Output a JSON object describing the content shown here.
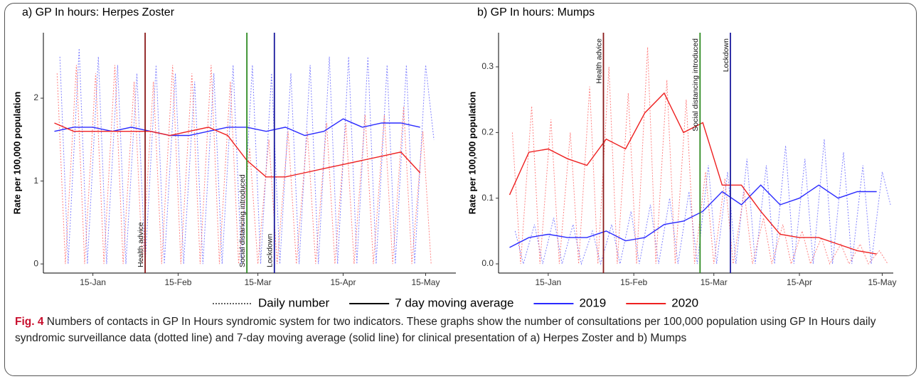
{
  "chart_data": [
    {
      "type": "line",
      "title": "a) GP In hours: Herpes Zoster",
      "ylabel": "Rate per 100,000 population",
      "xlim": [
        -3,
        147
      ],
      "ylim": [
        -0.11,
        2.79
      ],
      "xticks": [
        {
          "value": 15,
          "label": "15-Jan"
        },
        {
          "value": 46,
          "label": "15-Feb"
        },
        {
          "value": 75,
          "label": "15-Mar"
        },
        {
          "value": 106,
          "label": "15-Apr"
        },
        {
          "value": 136,
          "label": "15-May"
        }
      ],
      "yticks": [
        0,
        1,
        2
      ],
      "vline_label_pos": "bottom",
      "vlines": [
        {
          "x": 34,
          "label": "Health advice",
          "color": "#8b1a1a"
        },
        {
          "x": 71,
          "label": "Social distancing introduced",
          "color": "#2e8b22"
        },
        {
          "x": 81,
          "label": "Lockdown",
          "color": "#1a1a9e"
        }
      ],
      "series": [
        {
          "name": "2019",
          "dash": "dotted",
          "color": "#5a5aff",
          "x": [
            3,
            6,
            10,
            13,
            17,
            20,
            24,
            27,
            31,
            34,
            38,
            41,
            45,
            48,
            52,
            55,
            59,
            62,
            66,
            69,
            73,
            76,
            80,
            83,
            87,
            90,
            94,
            97,
            101,
            104,
            108,
            111,
            115,
            118,
            122,
            125,
            129,
            132,
            136,
            139
          ],
          "values": [
            2.5,
            0,
            2.6,
            0,
            2.5,
            0,
            2.4,
            0,
            2.3,
            0,
            2.4,
            0,
            2.3,
            0,
            2.2,
            0,
            2.3,
            0,
            2.4,
            0,
            2.4,
            0,
            2.3,
            0,
            2.3,
            0,
            2.4,
            0,
            2.5,
            0,
            2.5,
            0,
            2.5,
            0,
            2.4,
            0,
            2.4,
            0,
            2.4,
            1.5
          ]
        },
        {
          "name": "2020",
          "dash": "dotted",
          "color": "#ff5a5a",
          "x": [
            2,
            5,
            9,
            12,
            16,
            19,
            23,
            26,
            30,
            33,
            37,
            40,
            44,
            47,
            51,
            54,
            58,
            61,
            65,
            68,
            72,
            75,
            79,
            82,
            86,
            89,
            93,
            96,
            100,
            103,
            107,
            110,
            114,
            117,
            121,
            124,
            128,
            131,
            135,
            138
          ],
          "values": [
            2.3,
            0,
            2.4,
            0,
            2.3,
            0,
            2.4,
            0,
            2.2,
            0,
            2.2,
            0,
            2.4,
            0,
            2.3,
            0,
            2.4,
            0,
            2.2,
            0,
            1.4,
            0,
            1.5,
            0,
            1.6,
            0,
            1.6,
            0,
            1.7,
            0,
            1.7,
            0,
            1.8,
            0,
            1.8,
            0,
            1.9,
            0,
            1.6,
            0
          ]
        },
        {
          "name": "2019",
          "dash": "solid",
          "color": "#2a2aff",
          "x": [
            1,
            8,
            15,
            22,
            29,
            36,
            43,
            50,
            57,
            64,
            71,
            78,
            85,
            92,
            99,
            106,
            113,
            120,
            127,
            134
          ],
          "values": [
            1.6,
            1.65,
            1.65,
            1.6,
            1.65,
            1.6,
            1.55,
            1.55,
            1.6,
            1.65,
            1.65,
            1.6,
            1.65,
            1.55,
            1.6,
            1.75,
            1.65,
            1.7,
            1.7,
            1.65
          ]
        },
        {
          "name": "2020",
          "dash": "solid",
          "color": "#ee2020",
          "x": [
            1,
            8,
            15,
            22,
            29,
            36,
            43,
            50,
            57,
            64,
            71,
            78,
            85,
            92,
            99,
            106,
            113,
            120,
            127,
            134
          ],
          "values": [
            1.7,
            1.6,
            1.6,
            1.6,
            1.6,
            1.6,
            1.55,
            1.6,
            1.65,
            1.55,
            1.25,
            1.05,
            1.05,
            1.1,
            1.15,
            1.2,
            1.25,
            1.3,
            1.35,
            1.1
          ]
        }
      ]
    },
    {
      "type": "line",
      "title": "b) GP In hours: Mumps",
      "ylabel": "Rate per 100,000 population",
      "xlim": [
        -3,
        140
      ],
      "ylim": [
        -0.014,
        0.352
      ],
      "xticks": [
        {
          "value": 15,
          "label": "15-Jan"
        },
        {
          "value": 46,
          "label": "15-Feb"
        },
        {
          "value": 75,
          "label": "15-Mar"
        },
        {
          "value": 106,
          "label": "15-Apr"
        },
        {
          "value": 136,
          "label": "15-May"
        }
      ],
      "yticks": [
        {
          "value": 0,
          "label": "0.0"
        },
        0.1,
        0.2,
        0.3
      ],
      "vline_label_pos": "top",
      "vlines": [
        {
          "x": 35,
          "label": "Health advice",
          "color": "#8b1a1a"
        },
        {
          "x": 70,
          "label": "Social distancing introduced",
          "color": "#2e8b22"
        },
        {
          "x": 81,
          "label": "Lockdown",
          "color": "#1a1a9e"
        }
      ],
      "series": [
        {
          "name": "2019",
          "dash": "dotted",
          "color": "#5a5aff",
          "x": [
            3,
            6,
            10,
            13,
            17,
            20,
            24,
            27,
            31,
            34,
            38,
            41,
            45,
            48,
            52,
            55,
            59,
            62,
            66,
            69,
            73,
            76,
            80,
            83,
            87,
            90,
            94,
            97,
            101,
            104,
            108,
            111,
            115,
            118,
            122,
            125,
            129,
            132,
            136,
            139
          ],
          "values": [
            0.05,
            0,
            0.06,
            0,
            0.07,
            0,
            0.06,
            0,
            0.05,
            0,
            0.06,
            0,
            0.08,
            0,
            0.09,
            0,
            0.1,
            0,
            0.11,
            0,
            0.15,
            0,
            0.14,
            0,
            0.16,
            0,
            0.15,
            0,
            0.18,
            0,
            0.16,
            0,
            0.19,
            0,
            0.17,
            0,
            0.15,
            0,
            0.14,
            0.09
          ]
        },
        {
          "name": "2020",
          "dash": "dotted",
          "color": "#ff5a5a",
          "x": [
            2,
            5,
            9,
            12,
            16,
            19,
            23,
            26,
            30,
            33,
            37,
            40,
            44,
            47,
            51,
            54,
            58,
            61,
            65,
            68,
            72,
            75,
            79,
            82,
            86,
            89,
            93,
            96,
            100,
            103,
            107,
            110,
            114,
            117,
            121,
            124,
            128,
            131,
            135,
            138
          ],
          "values": [
            0.2,
            0,
            0.24,
            0,
            0.22,
            0,
            0.2,
            0,
            0.27,
            0,
            0.3,
            0,
            0.26,
            0,
            0.33,
            0,
            0.28,
            0,
            0.25,
            0,
            0.14,
            0,
            0.13,
            0,
            0.11,
            0,
            0.07,
            0,
            0.06,
            0,
            0.05,
            0,
            0.04,
            0,
            0.03,
            0,
            0.03,
            0,
            0.02,
            0
          ]
        },
        {
          "name": "2019",
          "dash": "solid",
          "color": "#2a2aff",
          "x": [
            1,
            8,
            15,
            22,
            29,
            36,
            43,
            50,
            57,
            64,
            71,
            78,
            85,
            92,
            99,
            106,
            113,
            120,
            127,
            134
          ],
          "values": [
            0.025,
            0.04,
            0.045,
            0.04,
            0.04,
            0.05,
            0.035,
            0.04,
            0.06,
            0.065,
            0.08,
            0.11,
            0.09,
            0.12,
            0.09,
            0.1,
            0.12,
            0.1,
            0.11,
            0.11
          ]
        },
        {
          "name": "2020",
          "dash": "solid",
          "color": "#ee2020",
          "x": [
            1,
            8,
            15,
            22,
            29,
            36,
            43,
            50,
            57,
            64,
            71,
            78,
            85,
            92,
            99,
            106,
            113,
            120,
            127,
            134
          ],
          "values": [
            0.105,
            0.17,
            0.175,
            0.16,
            0.15,
            0.19,
            0.175,
            0.23,
            0.26,
            0.2,
            0.215,
            0.12,
            0.12,
            0.08,
            0.045,
            0.04,
            0.04,
            0.03,
            0.02,
            0.015
          ]
        }
      ]
    }
  ],
  "legend": [
    {
      "label": "Daily number",
      "dash": "dotted"
    },
    {
      "label": "7 day moving average",
      "dash": "solid"
    },
    {
      "label": "2019",
      "color": "#2a2aff"
    },
    {
      "label": "2020",
      "color": "#ee2020"
    }
  ],
  "caption": {
    "label": "Fig. 4",
    "text": "Numbers of contacts in GP In Hours syndromic system for two indicators. These graphs show the number of consultations per 100,000 population using GP In Hours daily syndromic surveillance data (dotted line) and 7-day moving average (solid line) for clinical presentation of a) Herpes Zoster and b) Mumps"
  }
}
